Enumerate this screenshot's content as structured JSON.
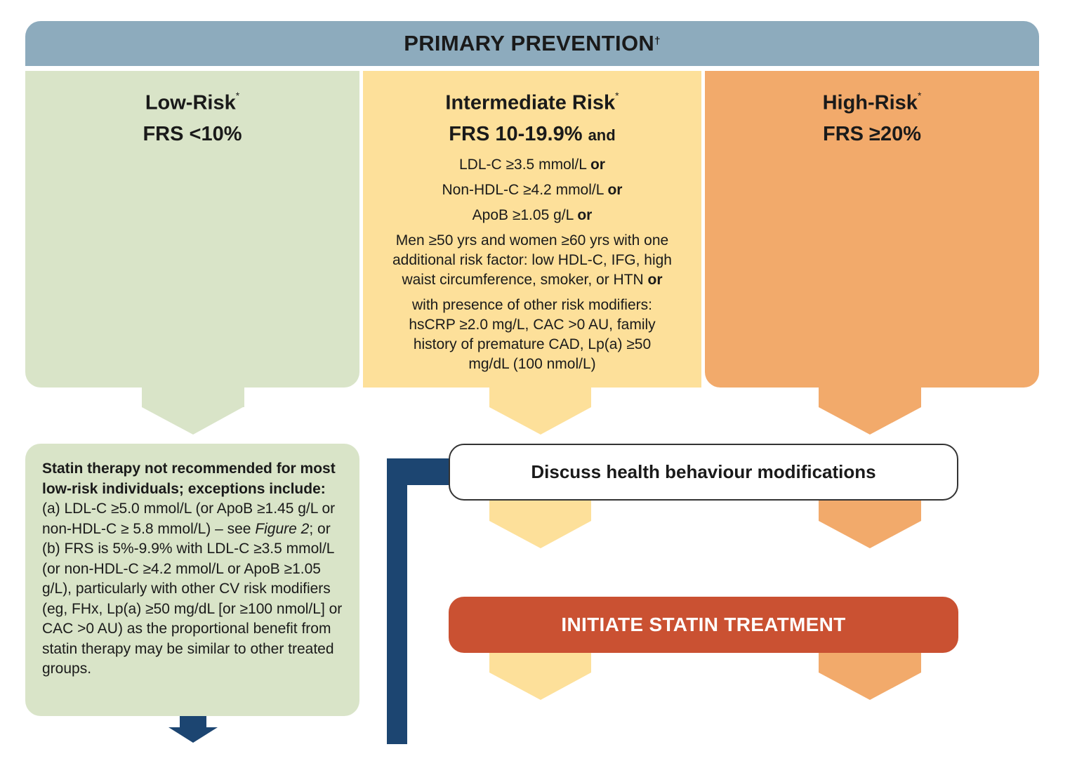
{
  "colors": {
    "header_bg": "#8dabbd",
    "low": "#d9e4c8",
    "intermediate": "#fde09a",
    "high": "#f2aa6b",
    "navy": "#1c4571",
    "initiate_bg": "#ca5132"
  },
  "header": {
    "title": "PRIMARY PREVENTION",
    "mark": "†"
  },
  "columns": {
    "low": {
      "title": "Low-Risk",
      "mark": "*",
      "frs": "FRS <10%"
    },
    "intermediate": {
      "title": "Intermediate Risk",
      "mark": "*",
      "frs": "FRS 10-19.9%",
      "frs_and": "and",
      "criteria": [
        {
          "text": "LDL-C ≥3.5 mmol/L",
          "conj": "or"
        },
        {
          "text": "Non-HDL-C ≥4.2 mmol/L",
          "conj": "or"
        },
        {
          "text": "ApoB ≥1.05 g/L",
          "conj": "or"
        },
        {
          "text": "Men ≥50 yrs and women ≥60 yrs with one additional risk factor: low HDL-C, IFG, high waist circumference, smoker, or HTN",
          "conj": "or"
        },
        {
          "text": "with presence of other risk modifiers: hsCRP ≥2.0 mg/L, CAC >0 AU, family history of premature CAD, Lp(a) ≥50 mg/dL (100 nmol/L)",
          "conj": ""
        }
      ]
    },
    "high": {
      "title": "High-Risk",
      "mark": "*",
      "frs": "FRS ≥20%"
    }
  },
  "low_box": {
    "lead_bold": "Statin therapy not recommended for most low-risk individuals; exceptions include:",
    "text_a": " (a) LDL-C ≥5.0 mmol/L (or ApoB ≥1.45 g/L or non-HDL-C ≥ 5.8 mmol/L) – see ",
    "figure_ref": "Figure 2",
    "text_b": "; or (b) FRS is 5%-9.9% with LDL-C ≥3.5 mmol/L (or non-HDL-C ≥4.2 mmol/L or ApoB ≥1.05 g/L), particularly with other CV risk modifiers (eg, FHx, Lp(a) ≥50 mg/dL [or ≥100 nmol/L] or CAC >0 AU) as the proportional benefit from statin therapy may be similar to other treated groups."
  },
  "discuss": {
    "label": "Discuss health behaviour modifications"
  },
  "initiate": {
    "label": "INITIATE STATIN TREATMENT"
  }
}
